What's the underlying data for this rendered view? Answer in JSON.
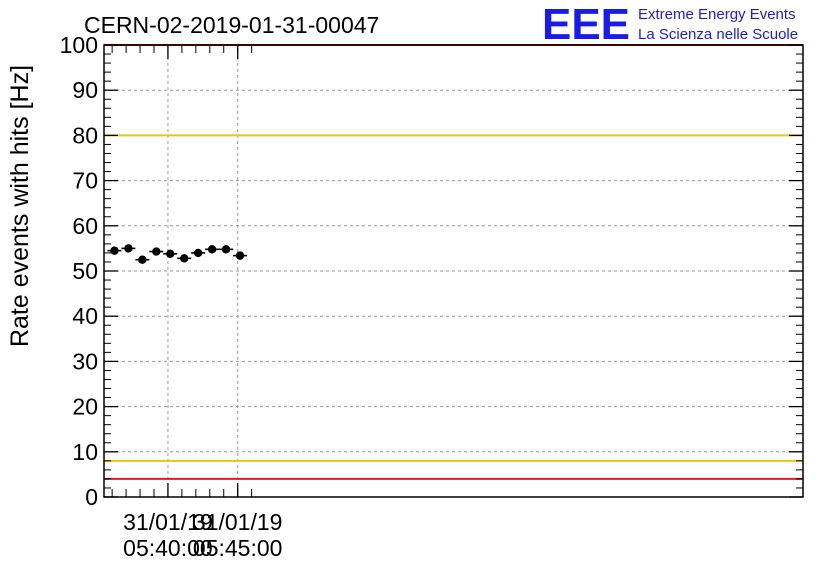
{
  "header": {
    "run_title": "CERN-02-2019-01-31-00047",
    "logo_letters": "EEE",
    "logo_line1": "Extreme Energy Events",
    "logo_line2": "La Scienza nelle Scuole"
  },
  "chart_data": {
    "type": "scatter",
    "ylabel": "Rate events with hits [Hz]",
    "xlabel": "",
    "ylim": [
      0,
      100
    ],
    "y_ticks": [
      0,
      10,
      20,
      30,
      40,
      50,
      60,
      70,
      80,
      90,
      100
    ],
    "x_tick_labels": [
      {
        "date": "31/01/19",
        "time": "05:40:00"
      },
      {
        "date": "31/01/19",
        "time": "05:45:00"
      }
    ],
    "grid": true,
    "series": [
      {
        "x_bins": [
          [
            "05:35:40",
            "05:36:40"
          ],
          [
            "05:36:40",
            "05:37:40"
          ],
          [
            "05:37:40",
            "05:38:40"
          ],
          [
            "05:38:40",
            "05:39:40"
          ],
          [
            "05:39:40",
            "05:40:40"
          ],
          [
            "05:40:40",
            "05:41:40"
          ],
          [
            "05:41:40",
            "05:42:40"
          ],
          [
            "05:42:40",
            "05:43:40"
          ],
          [
            "05:43:40",
            "05:44:40"
          ],
          [
            "05:44:40",
            "05:45:40"
          ]
        ],
        "values": [
          54.5,
          55.0,
          52.5,
          54.3,
          53.8,
          52.8,
          54.0,
          54.8,
          54.8,
          53.4
        ]
      }
    ],
    "reference_lines": [
      {
        "value": 100,
        "color": "#e8191e"
      },
      {
        "value": 80,
        "color": "#ecc417"
      },
      {
        "value": 8,
        "color": "#ecc417"
      },
      {
        "value": 4,
        "color": "#e8191e"
      }
    ],
    "colors": {
      "marker": "#000000",
      "logo": "#1a1aee",
      "grid": "#9a9a9a"
    }
  }
}
